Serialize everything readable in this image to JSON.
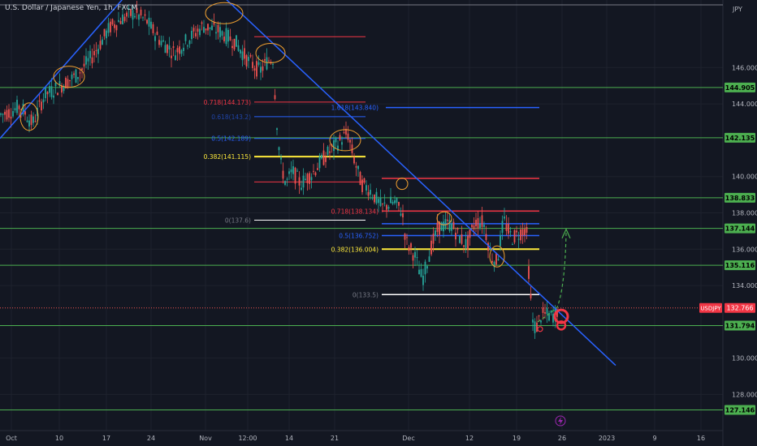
{
  "chart_data": {
    "type": "candlestick",
    "title": "U.S. Dollar / Japanese Yen, 1h, FXCM",
    "currency": "JPY",
    "symbol": "USDJPY",
    "last_price": "132.766",
    "ylim": [
      126.5,
      149.5
    ],
    "y_ticks": [
      "146.000",
      "144.000",
      "140.000",
      "138.000",
      "136.000",
      "134.000",
      "130.000",
      "128.000"
    ],
    "x_ticks": [
      "Oct",
      "10",
      "17",
      "24",
      "Nov",
      "12:00",
      "14",
      "21",
      "Dec",
      "12",
      "19",
      "26",
      "2023",
      "9",
      "16"
    ],
    "horizontal_levels": [
      {
        "label": "144.905",
        "color": "#4caf50"
      },
      {
        "label": "142.135",
        "color": "#4caf50"
      },
      {
        "label": "138.833",
        "color": "#4caf50"
      },
      {
        "label": "137.144",
        "color": "#4caf50"
      },
      {
        "label": "135.116",
        "color": "#4caf50"
      },
      {
        "label": "131.794",
        "color": "#4caf50"
      },
      {
        "label": "127.146",
        "color": "#4caf50"
      }
    ],
    "fib_1_labels": [
      {
        "label": "0.718(144.173)",
        "color": "#f23645"
      },
      {
        "label": "0.5(142.189)",
        "color": "#2962ff"
      },
      {
        "label": "0.382(141.115)",
        "color": "#ffeb3b"
      }
    ],
    "fib_2_labels": [
      {
        "label": "1.618(143.840)",
        "color": "#2962ff"
      },
      {
        "label": "0.718(138.134)",
        "color": "#f23645"
      },
      {
        "label": "0.5(136.752)",
        "color": "#2962ff"
      },
      {
        "label": "0.382(136.004)",
        "color": "#ffeb3b"
      }
    ],
    "up_color": "#26a69a",
    "down_color": "#ef5350",
    "trendline_color": "#2962ff",
    "circle_color": "#f0a030"
  }
}
